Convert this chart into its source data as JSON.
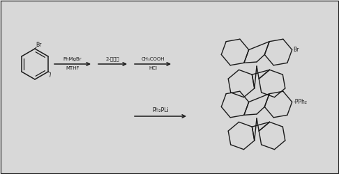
{
  "bg_color": "#d8d8d8",
  "line_color": "#1a1a1a",
  "text_color": "#1a1a1a",
  "step1_reagent1": "PhMgBr",
  "step1_reagent2": "MTHF",
  "step2_reagent1": "2-溪茗锐",
  "step3_reagent1": "CH₃COOH",
  "step3_reagent2": "HCl",
  "step4_reagent1": "Ph₂PLi",
  "label_Br_top": "Br",
  "label_I": "I",
  "label_Br_product": "Br",
  "label_PPh2": "-PPh₂",
  "figsize": [
    4.86,
    2.5
  ],
  "dpi": 100
}
